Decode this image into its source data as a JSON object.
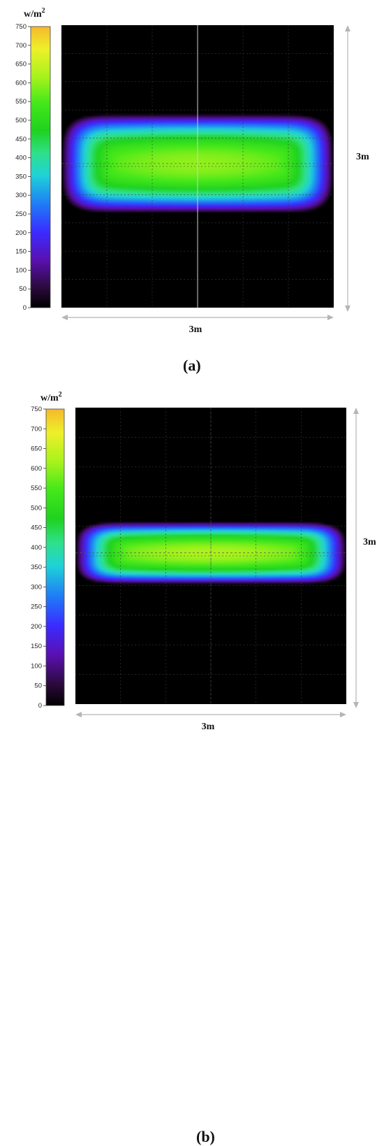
{
  "figure": {
    "caption_a": "(a)",
    "caption_b": "(b)"
  },
  "colorbar": {
    "unit_base": "w/m",
    "unit_exp": "2",
    "min": 0,
    "max": 750,
    "ticks": [
      "0",
      "50",
      "100",
      "150",
      "200",
      "250",
      "300",
      "350",
      "400",
      "450",
      "500",
      "550",
      "600",
      "650",
      "700",
      "750"
    ],
    "stops": [
      [
        0,
        "#000000"
      ],
      [
        0.07,
        "#2a0a3a"
      ],
      [
        0.17,
        "#5a10b0"
      ],
      [
        0.27,
        "#3a2cff"
      ],
      [
        0.37,
        "#1f7df6"
      ],
      [
        0.47,
        "#1fd2d8"
      ],
      [
        0.55,
        "#2fe08a"
      ],
      [
        0.63,
        "#1fd21f"
      ],
      [
        0.73,
        "#46e81a"
      ],
      [
        0.82,
        "#a6f21c"
      ],
      [
        0.92,
        "#eef02a"
      ],
      [
        1,
        "#f5b82c"
      ]
    ]
  },
  "chart_data": [
    {
      "type": "heatmap",
      "panel": "(a)",
      "xlabel": "3m",
      "ylabel": "3m",
      "zlim": [
        0,
        750
      ],
      "unit": "w/m2",
      "peak": 600,
      "hotspot": {
        "x_range_frac": [
          0.0,
          1.0
        ],
        "y_range_frac": [
          0.33,
          0.68
        ],
        "center_frac": [
          0.5,
          0.49
        ]
      }
    },
    {
      "type": "heatmap",
      "panel": "(b)",
      "xlabel": "3m",
      "ylabel": "3m",
      "zlim": [
        0,
        750
      ],
      "unit": "w/m2",
      "peak": 620,
      "hotspot": {
        "x_range_frac": [
          0.0,
          1.0
        ],
        "y_range_frac": [
          0.39,
          0.6
        ],
        "center_frac": [
          0.5,
          0.49
        ]
      }
    }
  ]
}
